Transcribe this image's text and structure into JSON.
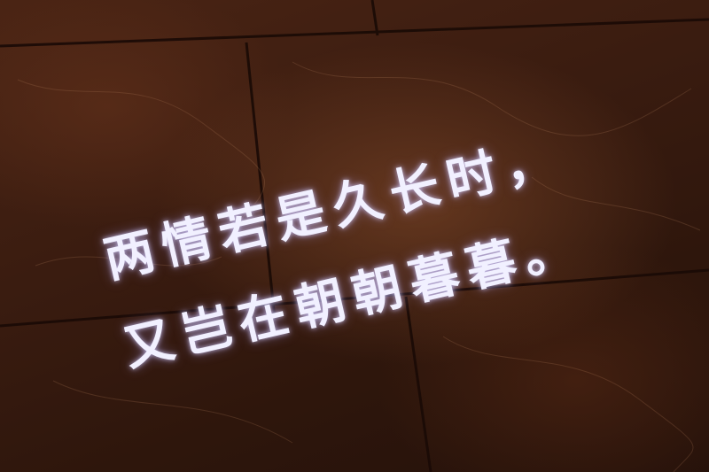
{
  "poem": {
    "line1": "两情若是久长时，",
    "line2": "又岂在朝朝暮暮。"
  }
}
